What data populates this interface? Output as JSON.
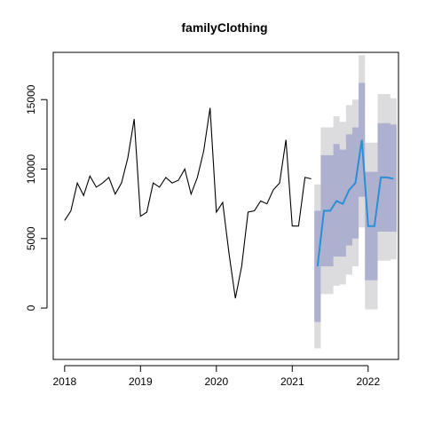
{
  "chart_data": {
    "type": "line",
    "title": "familyClothing",
    "xlabel": "",
    "ylabel": "",
    "xlim": [
      2017.85,
      2022.4
    ],
    "ylim": [
      -3700,
      18400
    ],
    "x_ticks": [
      2018,
      2019,
      2020,
      2021,
      2022
    ],
    "y_ticks": [
      0,
      5000,
      10000,
      15000
    ],
    "grid": false,
    "legend": "none",
    "colors": {
      "history": "#000000",
      "forecast": "#2b8fd6",
      "band80": "#aeb0d0",
      "band95": "#dcdcde"
    },
    "history": {
      "x": [
        2018.0,
        2018.083,
        2018.167,
        2018.25,
        2018.333,
        2018.417,
        2018.5,
        2018.583,
        2018.667,
        2018.75,
        2018.833,
        2018.917,
        2019.0,
        2019.083,
        2019.167,
        2019.25,
        2019.333,
        2019.417,
        2019.5,
        2019.583,
        2019.667,
        2019.75,
        2019.833,
        2019.917,
        2020.0,
        2020.083,
        2020.167,
        2020.25,
        2020.333,
        2020.417,
        2020.5,
        2020.583,
        2020.667,
        2020.75,
        2020.833,
        2020.917,
        2021.0,
        2021.083,
        2021.167,
        2021.25
      ],
      "y": [
        6300,
        7000,
        9000,
        8100,
        9500,
        8700,
        9000,
        9400,
        8200,
        9000,
        10800,
        13600,
        6600,
        6900,
        9000,
        8700,
        9400,
        9000,
        9200,
        10000,
        8200,
        9400,
        11300,
        14400,
        6900,
        7600,
        3900,
        700,
        3000,
        6900,
        7000,
        7700,
        7500,
        8500,
        9000,
        12100,
        5900,
        5900,
        9400,
        9300
      ]
    },
    "forecast": {
      "x": [
        2021.333,
        2021.417,
        2021.5,
        2021.583,
        2021.667,
        2021.75,
        2021.833,
        2021.917,
        2022.0,
        2022.083,
        2022.167,
        2022.25,
        2022.333
      ],
      "mean": [
        3000,
        7000,
        7000,
        7700,
        7500,
        8500,
        9000,
        12100,
        5900,
        5900,
        9400,
        9400,
        9300
      ],
      "lo80": [
        -1000,
        3000,
        3000,
        3700,
        3700,
        4500,
        5000,
        8000,
        2000,
        2000,
        5500,
        5500,
        5500
      ],
      "hi80": [
        7000,
        11000,
        11000,
        11800,
        11400,
        12500,
        13000,
        16200,
        9800,
        9800,
        13300,
        13300,
        13200
      ],
      "lo95": [
        -2900,
        1000,
        1000,
        1600,
        1700,
        2400,
        3000,
        5800,
        -100,
        -100,
        3400,
        3400,
        3500
      ],
      "hi95": [
        8900,
        13000,
        13000,
        13800,
        13400,
        14600,
        15000,
        18200,
        11900,
        11900,
        15400,
        15400,
        15100
      ]
    }
  }
}
